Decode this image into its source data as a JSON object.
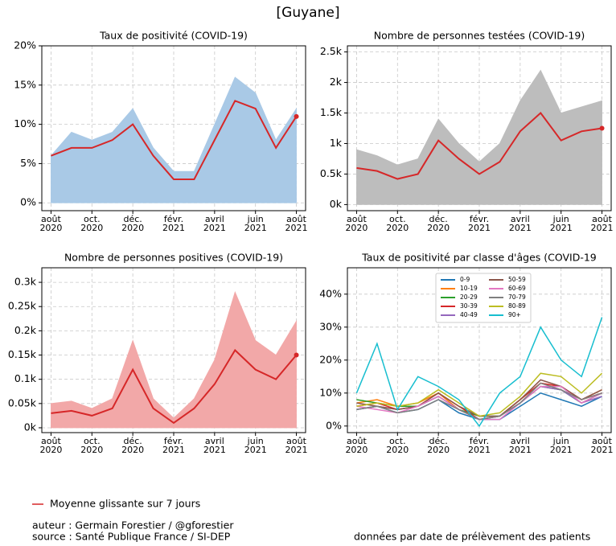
{
  "title": "[Guyane]",
  "legend": "Moyenne glissante sur 7 jours",
  "author": "auteur : Germain Forestier / @gforestier",
  "source": "source : Santé Publique France / SI-DEP",
  "note": "données par date de prélèvement des patients",
  "chart_data": [
    {
      "type": "line",
      "title": "Taux de positivité (COVID-19)",
      "x": [
        "2020-08",
        "2020-09",
        "2020-10",
        "2020-11",
        "2020-12",
        "2021-01",
        "2021-02",
        "2021-03",
        "2021-04",
        "2021-05",
        "2021-06",
        "2021-07",
        "2021-08"
      ],
      "xlim": [
        "2020-08",
        "2021-08"
      ],
      "xticks": [
        {
          "value": "2020-08",
          "label": [
            "août",
            "2020"
          ]
        },
        {
          "value": "2020-10",
          "label": [
            "oct.",
            "2020"
          ]
        },
        {
          "value": "2020-12",
          "label": [
            "déc.",
            "2020"
          ]
        },
        {
          "value": "2021-02",
          "label": [
            "févr.",
            "2021"
          ]
        },
        {
          "value": "2021-04",
          "label": [
            "avril",
            "2021"
          ]
        },
        {
          "value": "2021-06",
          "label": [
            "juin",
            "2021"
          ]
        },
        {
          "value": "2021-08",
          "label": [
            "août",
            "2021"
          ]
        }
      ],
      "ylim": [
        -1,
        20
      ],
      "yticks": [
        {
          "value": 0,
          "label": "0%"
        },
        {
          "value": 5,
          "label": "5%"
        },
        {
          "value": 10,
          "label": "10%"
        },
        {
          "value": 15,
          "label": "15%"
        },
        {
          "value": 20,
          "label": "20%"
        }
      ],
      "grid": true,
      "series": [
        {
          "color": "#a9c9e6",
          "fill": true,
          "values": [
            6,
            9,
            8,
            9,
            12,
            7,
            4,
            4,
            10,
            16,
            14,
            8,
            12
          ]
        },
        {
          "color": "#d62728",
          "values": [
            6,
            7,
            7,
            8,
            10,
            6,
            3,
            3,
            8,
            13,
            12,
            7,
            11
          ]
        }
      ]
    },
    {
      "type": "line",
      "title": "Nombre de personnes testées (COVID-19)",
      "x": [
        "2020-08",
        "2020-09",
        "2020-10",
        "2020-11",
        "2020-12",
        "2021-01",
        "2021-02",
        "2021-03",
        "2021-04",
        "2021-05",
        "2021-06",
        "2021-07",
        "2021-08"
      ],
      "xlim": [
        "2020-08",
        "2021-08"
      ],
      "xticks": [
        {
          "value": "2020-08",
          "label": [
            "août",
            "2020"
          ]
        },
        {
          "value": "2020-10",
          "label": [
            "oct.",
            "2020"
          ]
        },
        {
          "value": "2020-12",
          "label": [
            "déc.",
            "2020"
          ]
        },
        {
          "value": "2021-02",
          "label": [
            "févr.",
            "2021"
          ]
        },
        {
          "value": "2021-04",
          "label": [
            "avril",
            "2021"
          ]
        },
        {
          "value": "2021-06",
          "label": [
            "juin",
            "2021"
          ]
        },
        {
          "value": "2021-08",
          "label": [
            "août",
            "2021"
          ]
        }
      ],
      "ylim": [
        -100,
        2600
      ],
      "yticks": [
        {
          "value": 0,
          "label": "0k"
        },
        {
          "value": 500,
          "label": "0.5k"
        },
        {
          "value": 1000,
          "label": "1k"
        },
        {
          "value": 1500,
          "label": "1.5k"
        },
        {
          "value": 2000,
          "label": "2k"
        },
        {
          "value": 2500,
          "label": "2.5k"
        }
      ],
      "grid": true,
      "series": [
        {
          "color": "#bdbdbd",
          "fill": true,
          "values": [
            900,
            800,
            650,
            750,
            1400,
            1000,
            700,
            1000,
            1700,
            2200,
            1500,
            1600,
            1700
          ]
        },
        {
          "color": "#d62728",
          "values": [
            600,
            550,
            420,
            500,
            1050,
            750,
            500,
            700,
            1200,
            1500,
            1050,
            1200,
            1250
          ]
        }
      ]
    },
    {
      "type": "line",
      "title": "Nombre de personnes positives (COVID-19)",
      "x": [
        "2020-08",
        "2020-09",
        "2020-10",
        "2020-11",
        "2020-12",
        "2021-01",
        "2021-02",
        "2021-03",
        "2021-04",
        "2021-05",
        "2021-06",
        "2021-07",
        "2021-08"
      ],
      "xlim": [
        "2020-08",
        "2021-08"
      ],
      "xticks": [
        {
          "value": "2020-08",
          "label": [
            "août",
            "2020"
          ]
        },
        {
          "value": "2020-10",
          "label": [
            "oct.",
            "2020"
          ]
        },
        {
          "value": "2020-12",
          "label": [
            "déc.",
            "2020"
          ]
        },
        {
          "value": "2021-02",
          "label": [
            "févr.",
            "2021"
          ]
        },
        {
          "value": "2021-04",
          "label": [
            "avril",
            "2021"
          ]
        },
        {
          "value": "2021-06",
          "label": [
            "juin",
            "2021"
          ]
        },
        {
          "value": "2021-08",
          "label": [
            "août",
            "2021"
          ]
        }
      ],
      "ylim": [
        -10,
        330
      ],
      "yticks": [
        {
          "value": 0,
          "label": "0k"
        },
        {
          "value": 50,
          "label": "0.05k"
        },
        {
          "value": 100,
          "label": "0.1k"
        },
        {
          "value": 150,
          "label": "0.15k"
        },
        {
          "value": 200,
          "label": "0.2k"
        },
        {
          "value": 250,
          "label": "0.25k"
        },
        {
          "value": 300,
          "label": "0.3k"
        }
      ],
      "grid": true,
      "series": [
        {
          "color": "#f2a8a8",
          "fill": true,
          "values": [
            50,
            55,
            40,
            60,
            180,
            60,
            20,
            60,
            140,
            280,
            180,
            150,
            220
          ]
        },
        {
          "color": "#d62728",
          "values": [
            30,
            35,
            25,
            40,
            120,
            40,
            10,
            40,
            90,
            160,
            120,
            100,
            150
          ]
        }
      ]
    },
    {
      "type": "line",
      "title": "Taux de positivité par classe d'âges (COVID-19",
      "x": [
        "2020-08",
        "2020-09",
        "2020-10",
        "2020-11",
        "2020-12",
        "2021-01",
        "2021-02",
        "2021-03",
        "2021-04",
        "2021-05",
        "2021-06",
        "2021-07",
        "2021-08"
      ],
      "xlim": [
        "2020-08",
        "2021-08"
      ],
      "xticks": [
        {
          "value": "2020-08",
          "label": [
            "août",
            "2020"
          ]
        },
        {
          "value": "2020-10",
          "label": [
            "oct.",
            "2020"
          ]
        },
        {
          "value": "2020-12",
          "label": [
            "déc.",
            "2020"
          ]
        },
        {
          "value": "2021-02",
          "label": [
            "févr.",
            "2021"
          ]
        },
        {
          "value": "2021-04",
          "label": [
            "avril",
            "2021"
          ]
        },
        {
          "value": "2021-06",
          "label": [
            "juin",
            "2021"
          ]
        },
        {
          "value": "2021-08",
          "label": [
            "août",
            "2021"
          ]
        }
      ],
      "ylim": [
        -2,
        48
      ],
      "yticks": [
        {
          "value": 0,
          "label": "0%"
        },
        {
          "value": 10,
          "label": "10%"
        },
        {
          "value": 20,
          "label": "20%"
        },
        {
          "value": 30,
          "label": "30%"
        },
        {
          "value": 40,
          "label": "40%"
        }
      ],
      "grid": true,
      "series": [
        {
          "name": "0-9",
          "color": "#1f77b4",
          "values": [
            5,
            6,
            4,
            5,
            8,
            4,
            2,
            2,
            6,
            10,
            8,
            6,
            9
          ]
        },
        {
          "name": "10-19",
          "color": "#ff7f0e",
          "values": [
            7,
            8,
            6,
            7,
            10,
            5,
            2,
            3,
            8,
            13,
            12,
            8,
            11
          ]
        },
        {
          "name": "20-29",
          "color": "#2ca02c",
          "values": [
            8,
            7,
            6,
            6,
            9,
            5,
            3,
            3,
            7,
            12,
            11,
            7,
            10
          ]
        },
        {
          "name": "30-39",
          "color": "#d62728",
          "values": [
            6,
            7,
            5,
            6,
            10,
            6,
            2,
            3,
            8,
            13,
            12,
            8,
            10
          ]
        },
        {
          "name": "40-49",
          "color": "#9467bd",
          "values": [
            5,
            6,
            5,
            6,
            9,
            5,
            2,
            3,
            7,
            12,
            11,
            7,
            9
          ]
        },
        {
          "name": "50-59",
          "color": "#8c564b",
          "values": [
            7,
            6,
            5,
            6,
            10,
            6,
            3,
            3,
            8,
            14,
            12,
            8,
            11
          ]
        },
        {
          "name": "60-69",
          "color": "#e377c2",
          "values": [
            6,
            5,
            4,
            6,
            9,
            5,
            2,
            2,
            7,
            12,
            12,
            7,
            10
          ]
        },
        {
          "name": "70-79",
          "color": "#7f7f7f",
          "values": [
            5,
            6,
            4,
            5,
            8,
            5,
            2,
            3,
            7,
            13,
            11,
            8,
            10
          ]
        },
        {
          "name": "80-89",
          "color": "#bcbd22",
          "values": [
            6,
            7,
            6,
            7,
            11,
            7,
            3,
            4,
            9,
            16,
            15,
            10,
            16
          ]
        },
        {
          "name": "90+",
          "color": "#17becf",
          "values": [
            10,
            25,
            5,
            15,
            12,
            8,
            0,
            10,
            15,
            30,
            20,
            15,
            33
          ]
        }
      ]
    }
  ]
}
